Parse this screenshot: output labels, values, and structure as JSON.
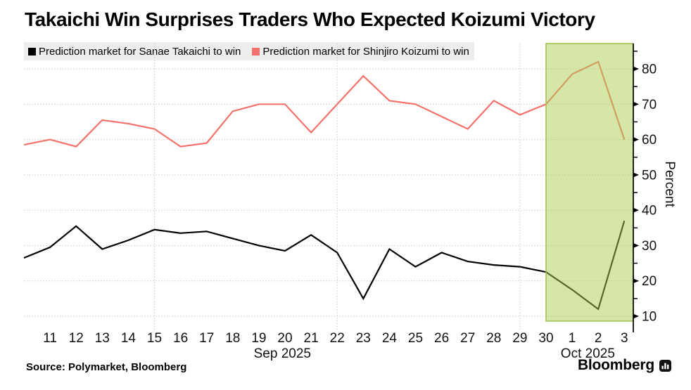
{
  "title": "Takaichi Win Surprises Traders Who Expected Koizumi Victory",
  "legend": {
    "takaichi": "Prediction market for Sanae Takaichi to win",
    "koizumi": "Prediction market for Shinjiro Koizumi to win"
  },
  "source": "Source: Polymarket, Bloomberg",
  "brand": "Bloomberg",
  "colors": {
    "takaichi_line": "#000000",
    "koizumi_line": "#f5716b",
    "highlight_fill": "rgba(171,206,82,0.5)",
    "highlight_border": "#9fbc52",
    "legend_bg": "#ededed",
    "grid": "#c9c9c9",
    "axis": "#000000",
    "tick_text": "#111111"
  },
  "chart_data": {
    "type": "line",
    "title": "Takaichi Win Surprises Traders Who Expected Koizumi Victory",
    "categories": [
      "Sep 10",
      "Sep 11",
      "Sep 12",
      "Sep 13",
      "Sep 14",
      "Sep 15",
      "Sep 16",
      "Sep 17",
      "Sep 18",
      "Sep 19",
      "Sep 20",
      "Sep 21",
      "Sep 22",
      "Sep 23",
      "Sep 24",
      "Sep 25",
      "Sep 26",
      "Sep 27",
      "Sep 28",
      "Sep 29",
      "Sep 30",
      "Oct 1",
      "Oct 2",
      "Oct 3"
    ],
    "x_tick_labels": [
      "",
      "11",
      "12",
      "13",
      "14",
      "15",
      "16",
      "17",
      "18",
      "19",
      "20",
      "21",
      "22",
      "23",
      "24",
      "25",
      "26",
      "27",
      "28",
      "29",
      "30",
      "1",
      "2",
      "3"
    ],
    "series": [
      {
        "name": "Prediction market for Shinjiro Koizumi to win",
        "color": "#f5716b",
        "values": [
          58.5,
          60,
          58,
          65.5,
          64.5,
          63,
          58,
          59,
          68,
          70,
          70,
          62,
          70,
          78,
          71,
          70,
          66.5,
          63,
          71,
          67,
          70,
          78.5,
          82,
          60
        ]
      },
      {
        "name": "Prediction market for Sanae Takaichi to win",
        "color": "#000000",
        "values": [
          26.5,
          29.5,
          35.5,
          29,
          31.5,
          34.5,
          33.5,
          34,
          32,
          30,
          28.5,
          33,
          28,
          15,
          29,
          24,
          28,
          25.5,
          24.5,
          24,
          22.5,
          17.5,
          12,
          37
        ]
      }
    ],
    "ylabel": "Percent",
    "y_major_ticks": [
      10,
      20,
      30,
      40,
      50,
      60,
      70,
      80
    ],
    "y_minor_ticks": [
      15,
      25,
      35,
      45,
      55,
      65,
      75,
      85
    ],
    "ylim": [
      8.5,
      87.2
    ],
    "grid_horizontal": "dotted",
    "vertical_gridline_categories": [
      "Sep 15",
      "Sep 22",
      "Sep 29"
    ],
    "highlight_region": {
      "start_category": "Sep 30",
      "end_category": "Oct 3",
      "extends_to": "right axis"
    },
    "month_labels": [
      {
        "label": "Sep 2025",
        "center_index": 9.9
      },
      {
        "label": "Oct 2025",
        "center_index": 21.6
      }
    ],
    "legend_position": "top-left"
  }
}
